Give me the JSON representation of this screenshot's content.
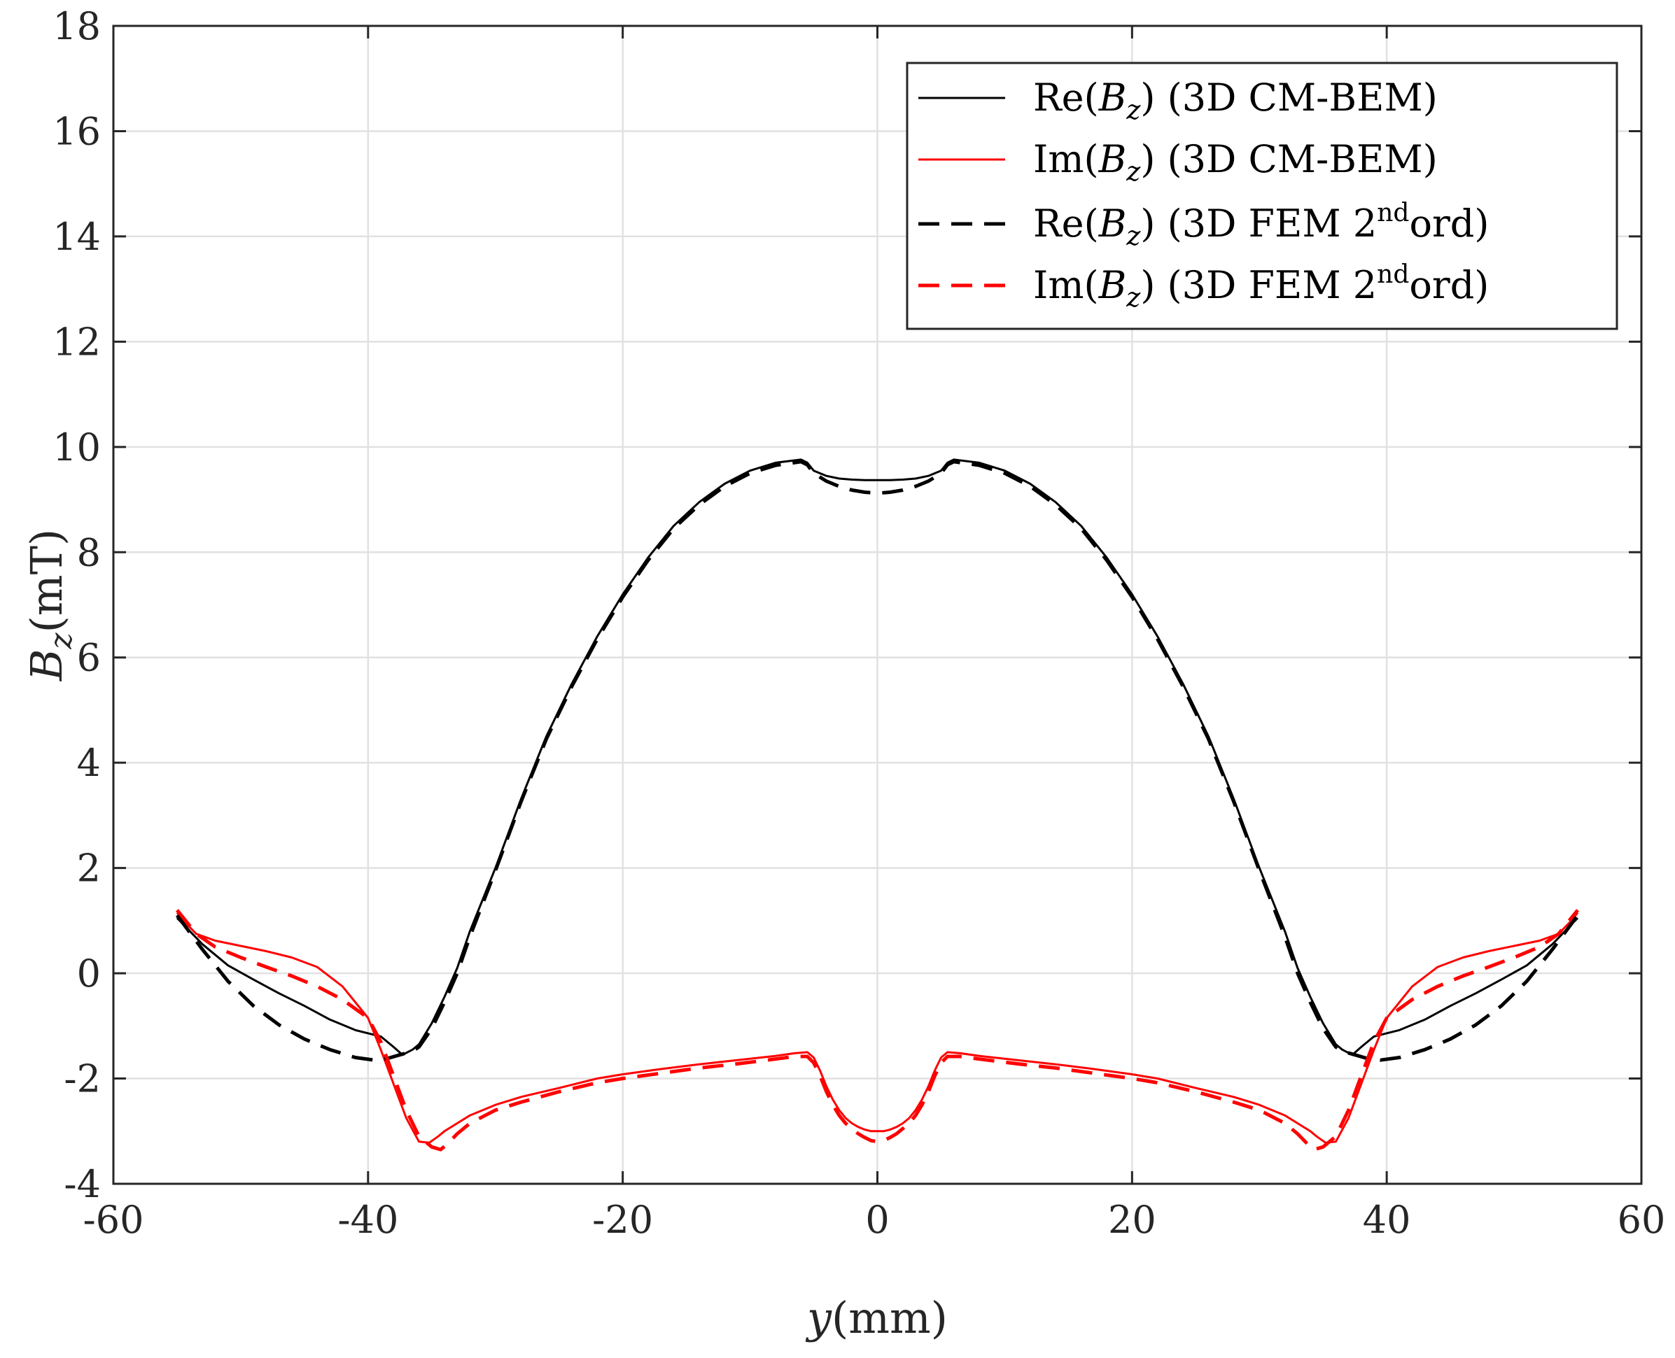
{
  "chart_data": {
    "type": "line",
    "xlabel": "y(mm)",
    "ylabel": "B_z(mT)",
    "xlim": [
      -60,
      60
    ],
    "ylim": [
      -4,
      18
    ],
    "xticks": [
      -60,
      -40,
      -20,
      0,
      20,
      40,
      60
    ],
    "yticks": [
      -4,
      -2,
      0,
      2,
      4,
      6,
      8,
      10,
      12,
      14,
      16,
      18
    ],
    "grid": true,
    "legend_position": "top-right",
    "series": [
      {
        "name": "Re(B_z) (3D CM-BEM)",
        "legend_parts": [
          "Re(",
          "B",
          "z",
          ") (3D CM-BEM)"
        ],
        "color": "#000000",
        "style": "solid",
        "x": [
          -55,
          -53,
          -51,
          -49,
          -47,
          -45,
          -43,
          -41,
          -39,
          -38,
          -37.3,
          -36.5,
          -36,
          -35,
          -34,
          -33,
          -32,
          -30,
          -28,
          -26,
          -24,
          -22,
          -20,
          -18,
          -16,
          -14,
          -12,
          -10,
          -8,
          -6,
          -5.5,
          -5,
          -4,
          -3,
          -2,
          -1,
          0,
          1,
          2,
          3,
          4,
          5,
          5.5,
          6,
          8,
          10,
          12,
          14,
          16,
          18,
          20,
          22,
          24,
          26,
          28,
          30,
          32,
          33,
          34,
          35,
          36,
          36.5,
          37.3,
          38,
          39,
          41,
          43,
          45,
          47,
          49,
          51,
          53,
          55
        ],
        "y": [
          1.05,
          0.55,
          0.15,
          -0.12,
          -0.38,
          -0.62,
          -0.88,
          -1.08,
          -1.2,
          -1.4,
          -1.55,
          -1.45,
          -1.35,
          -0.95,
          -0.45,
          0.1,
          0.8,
          2.0,
          3.3,
          4.5,
          5.5,
          6.4,
          7.2,
          7.9,
          8.5,
          8.95,
          9.3,
          9.55,
          9.7,
          9.76,
          9.7,
          9.55,
          9.45,
          9.4,
          9.38,
          9.37,
          9.37,
          9.37,
          9.38,
          9.4,
          9.45,
          9.55,
          9.7,
          9.76,
          9.7,
          9.55,
          9.3,
          8.95,
          8.5,
          7.9,
          7.2,
          6.4,
          5.5,
          4.5,
          3.3,
          2.0,
          0.8,
          0.1,
          -0.45,
          -0.95,
          -1.35,
          -1.45,
          -1.55,
          -1.4,
          -1.2,
          -1.08,
          -0.88,
          -0.62,
          -0.38,
          -0.12,
          0.15,
          0.55,
          1.05
        ]
      },
      {
        "name": "Im(B_z) (3D CM-BEM)",
        "legend_parts": [
          "Im(",
          "B",
          "z",
          ") (3D CM-BEM)"
        ],
        "color": "#ff0000",
        "style": "solid",
        "x": [
          -55,
          -54.5,
          -53.5,
          -52,
          -50,
          -48,
          -46,
          -44,
          -42,
          -40,
          -39,
          -38,
          -37,
          -36,
          -35.2,
          -34.5,
          -34,
          -33,
          -32,
          -30,
          -28,
          -25,
          -22,
          -20,
          -17,
          -14,
          -11,
          -8,
          -6.5,
          -5.5,
          -5,
          -4.5,
          -4,
          -3.5,
          -3,
          -2.5,
          -2,
          -1.5,
          -1,
          -0.5,
          0,
          0.5,
          1,
          1.5,
          2,
          2.5,
          3,
          3.5,
          4,
          4.5,
          5,
          5.5,
          6.5,
          8,
          11,
          14,
          17,
          20,
          22,
          25,
          28,
          30,
          32,
          33,
          34,
          34.5,
          35.2,
          36,
          37,
          38,
          39,
          40,
          42,
          44,
          46,
          48,
          50,
          52,
          53.5,
          54.5,
          55
        ],
        "y": [
          1.15,
          1.0,
          0.75,
          0.62,
          0.52,
          0.42,
          0.3,
          0.12,
          -0.25,
          -0.85,
          -1.45,
          -2.1,
          -2.75,
          -3.2,
          -3.22,
          -3.1,
          -3.0,
          -2.85,
          -2.7,
          -2.5,
          -2.35,
          -2.18,
          -2.0,
          -1.92,
          -1.82,
          -1.73,
          -1.65,
          -1.57,
          -1.52,
          -1.5,
          -1.6,
          -1.85,
          -2.15,
          -2.4,
          -2.6,
          -2.75,
          -2.85,
          -2.92,
          -2.97,
          -3.0,
          -3.0,
          -3.0,
          -2.97,
          -2.92,
          -2.85,
          -2.75,
          -2.6,
          -2.4,
          -2.15,
          -1.85,
          -1.6,
          -1.5,
          -1.52,
          -1.57,
          -1.65,
          -1.73,
          -1.82,
          -1.92,
          -2.0,
          -2.18,
          -2.35,
          -2.5,
          -2.7,
          -2.85,
          -3.0,
          -3.1,
          -3.22,
          -3.2,
          -2.75,
          -2.1,
          -1.45,
          -0.85,
          -0.25,
          0.12,
          0.3,
          0.42,
          0.52,
          0.62,
          0.75,
          1.0,
          1.15
        ]
      },
      {
        "name": "Re(B_z) (3D FEM 2ndord)",
        "legend_parts": [
          "Re(",
          "B",
          "z",
          ") (3D FEM 2",
          "nd",
          "ord)"
        ],
        "color": "#000000",
        "style": "dashed",
        "x": [
          -55,
          -53,
          -51,
          -49,
          -47,
          -45,
          -43,
          -41,
          -39.5,
          -38.5,
          -37.5,
          -36.5,
          -36,
          -35,
          -34,
          -33,
          -32,
          -30,
          -28,
          -26,
          -24,
          -22,
          -20,
          -18,
          -16,
          -14,
          -12,
          -10,
          -8,
          -6,
          -5.5,
          -5,
          -4,
          -3,
          -2,
          -1,
          0,
          1,
          2,
          3,
          4,
          5,
          5.5,
          6,
          8,
          10,
          12,
          14,
          16,
          18,
          20,
          22,
          24,
          26,
          28,
          30,
          32,
          33,
          34,
          35,
          36,
          36.5,
          37.5,
          38.5,
          39.5,
          41,
          43,
          45,
          47,
          49,
          51,
          53,
          55
        ],
        "y": [
          1.1,
          0.45,
          -0.15,
          -0.62,
          -0.98,
          -1.25,
          -1.45,
          -1.6,
          -1.65,
          -1.62,
          -1.55,
          -1.48,
          -1.4,
          -1.05,
          -0.55,
          0.0,
          0.7,
          1.95,
          3.25,
          4.45,
          5.45,
          6.35,
          7.15,
          7.85,
          8.45,
          8.9,
          9.25,
          9.5,
          9.65,
          9.72,
          9.66,
          9.5,
          9.35,
          9.25,
          9.18,
          9.14,
          9.12,
          9.14,
          9.18,
          9.25,
          9.35,
          9.5,
          9.66,
          9.72,
          9.65,
          9.5,
          9.25,
          8.9,
          8.45,
          7.85,
          7.15,
          6.35,
          5.45,
          4.45,
          3.25,
          1.95,
          0.7,
          0.0,
          -0.55,
          -1.05,
          -1.4,
          -1.48,
          -1.55,
          -1.62,
          -1.65,
          -1.6,
          -1.45,
          -1.25,
          -0.98,
          -0.62,
          -0.15,
          0.45,
          1.1
        ]
      },
      {
        "name": "Im(B_z) (3D FEM 2ndord)",
        "legend_parts": [
          "Im(",
          "B",
          "z",
          ") (3D FEM 2",
          "nd",
          "ord)"
        ],
        "color": "#ff0000",
        "style": "dashed",
        "x": [
          -55,
          -54.5,
          -53.5,
          -52,
          -50,
          -48,
          -46,
          -44,
          -42,
          -40,
          -39,
          -38,
          -37,
          -36,
          -35,
          -34.3,
          -33.8,
          -33,
          -32,
          -30,
          -28,
          -25,
          -22,
          -20,
          -17,
          -14,
          -11,
          -8,
          -6.5,
          -5.5,
          -5,
          -4.5,
          -4,
          -3.5,
          -3,
          -2.5,
          -2,
          -1.5,
          -1,
          -0.5,
          0,
          0.5,
          1,
          1.5,
          2,
          2.5,
          3,
          3.5,
          4,
          4.5,
          5,
          5.5,
          6.5,
          8,
          11,
          14,
          17,
          20,
          22,
          25,
          28,
          30,
          32,
          33,
          33.8,
          34.3,
          35,
          36,
          37,
          38,
          39,
          40,
          42,
          44,
          46,
          48,
          50,
          52,
          53.5,
          54.5,
          55
        ],
        "y": [
          1.2,
          1.05,
          0.75,
          0.5,
          0.3,
          0.12,
          -0.05,
          -0.25,
          -0.5,
          -0.85,
          -1.3,
          -1.95,
          -2.6,
          -3.1,
          -3.3,
          -3.35,
          -3.25,
          -3.05,
          -2.85,
          -2.6,
          -2.45,
          -2.25,
          -2.08,
          -2.0,
          -1.9,
          -1.8,
          -1.72,
          -1.63,
          -1.58,
          -1.58,
          -1.7,
          -1.95,
          -2.25,
          -2.5,
          -2.7,
          -2.85,
          -2.95,
          -3.05,
          -3.12,
          -3.18,
          -3.2,
          -3.18,
          -3.12,
          -3.05,
          -2.95,
          -2.85,
          -2.7,
          -2.5,
          -2.25,
          -1.95,
          -1.7,
          -1.58,
          -1.58,
          -1.63,
          -1.72,
          -1.8,
          -1.9,
          -2.0,
          -2.08,
          -2.25,
          -2.45,
          -2.6,
          -2.85,
          -3.05,
          -3.25,
          -3.35,
          -3.3,
          -3.1,
          -2.6,
          -1.95,
          -1.3,
          -0.85,
          -0.5,
          -0.25,
          -0.05,
          0.12,
          0.3,
          0.5,
          0.75,
          1.05,
          1.2
        ]
      }
    ]
  }
}
